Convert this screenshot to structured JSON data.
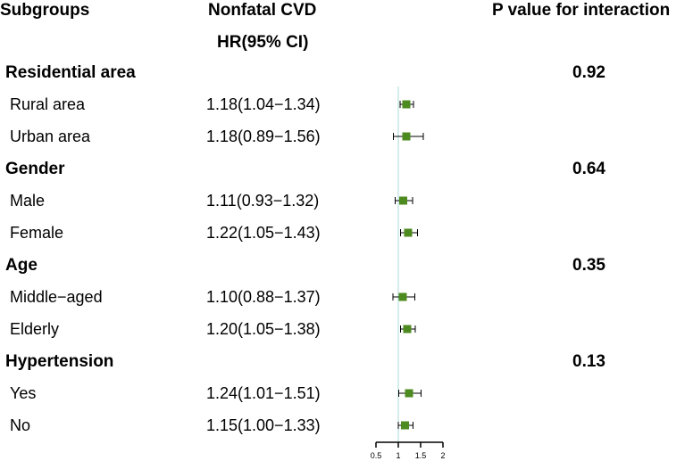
{
  "headers": {
    "subgroups": "Subgroups",
    "effect_line1": "Nonfatal CVD",
    "effect_line2": "HR(95% CI)",
    "p_value": "P value for interaction"
  },
  "groups": [
    {
      "name": "Residential area",
      "p_interaction": "0.92",
      "rows": [
        {
          "label": "Rural area",
          "hr_text": "1.18(1.04−1.34)"
        },
        {
          "label": "Urban area",
          "hr_text": "1.18(0.89−1.56)"
        }
      ]
    },
    {
      "name": "Gender",
      "p_interaction": "0.64",
      "rows": [
        {
          "label": "Male",
          "hr_text": "1.11(0.93−1.32)"
        },
        {
          "label": "Female",
          "hr_text": "1.22(1.05−1.43)"
        }
      ]
    },
    {
      "name": "Age",
      "p_interaction": "0.35",
      "rows": [
        {
          "label": "Middle−aged",
          "hr_text": "1.10(0.88−1.37)"
        },
        {
          "label": "Elderly",
          "hr_text": "1.20(1.05−1.38)"
        }
      ]
    },
    {
      "name": "Hypertension",
      "p_interaction": "0.13",
      "rows": [
        {
          "label": "Yes",
          "hr_text": "1.24(1.01−1.51)"
        },
        {
          "label": "No",
          "hr_text": "1.15(1.00−1.33)"
        }
      ]
    }
  ],
  "chart_data": {
    "type": "forest",
    "title": "Nonfatal CVD",
    "xlabel": "",
    "ylabel": "",
    "xlim": [
      0.5,
      2
    ],
    "reference_line": 1,
    "x_ticks": [
      0.5,
      1,
      1.5,
      2
    ],
    "x_tick_labels": [
      "0.5",
      "1",
      "1.5",
      "2"
    ],
    "points": [
      {
        "group": "Residential area",
        "label": "Rural area",
        "hr": 1.18,
        "lower": 1.04,
        "upper": 1.34
      },
      {
        "group": "Residential area",
        "label": "Urban area",
        "hr": 1.18,
        "lower": 0.89,
        "upper": 1.56
      },
      {
        "group": "Gender",
        "label": "Male",
        "hr": 1.11,
        "lower": 0.93,
        "upper": 1.32
      },
      {
        "group": "Gender",
        "label": "Female",
        "hr": 1.22,
        "lower": 1.05,
        "upper": 1.43
      },
      {
        "group": "Age",
        "label": "Middle−aged",
        "hr": 1.1,
        "lower": 0.88,
        "upper": 1.37
      },
      {
        "group": "Age",
        "label": "Elderly",
        "hr": 1.2,
        "lower": 1.05,
        "upper": 1.38
      },
      {
        "group": "Hypertension",
        "label": "Yes",
        "hr": 1.24,
        "lower": 1.01,
        "upper": 1.51
      },
      {
        "group": "Hypertension",
        "label": "No",
        "hr": 1.15,
        "lower": 1.0,
        "upper": 1.33
      }
    ],
    "colors": {
      "marker": "#4d8a1f",
      "reference": "#aadbd8",
      "ci": "#000000"
    }
  }
}
